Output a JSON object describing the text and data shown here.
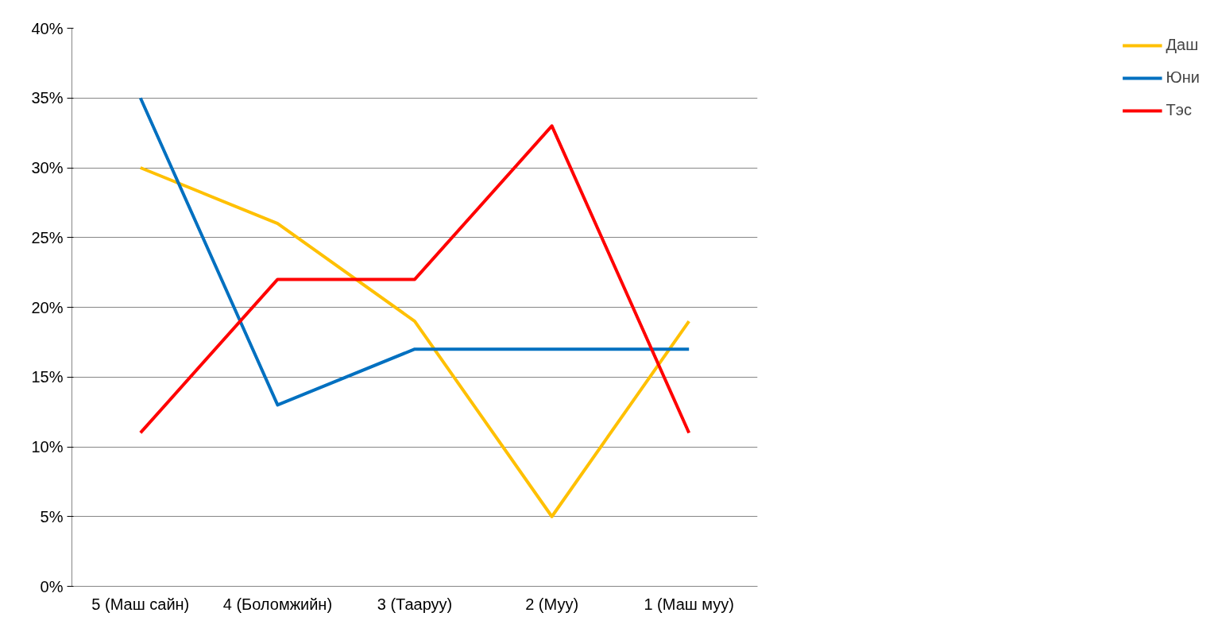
{
  "chart_data": {
    "type": "line",
    "categories": [
      "5 (Маш сайн)",
      "4 (Боломжийн)",
      "3 (Тааруу)",
      "2 (Муу)",
      "1 (Маш муу)"
    ],
    "series": [
      {
        "name": "Даш",
        "color": "#ffc000",
        "values": [
          30,
          26,
          19,
          5,
          19
        ]
      },
      {
        "name": "Юни",
        "color": "#0070c0",
        "values": [
          35,
          13,
          17,
          17,
          17
        ]
      },
      {
        "name": "Тэс",
        "color": "#ff0000",
        "values": [
          11,
          22,
          22,
          33,
          11
        ]
      }
    ],
    "ylim": [
      0,
      40
    ],
    "yticks": [
      {
        "value": 0,
        "label": "0%"
      },
      {
        "value": 5,
        "label": "5%"
      },
      {
        "value": 10,
        "label": "10%"
      },
      {
        "value": 15,
        "label": "15%"
      },
      {
        "value": 20,
        "label": "20%"
      },
      {
        "value": 25,
        "label": "25%"
      },
      {
        "value": 30,
        "label": "30%"
      },
      {
        "value": 35,
        "label": "35%"
      },
      {
        "value": 40,
        "label": "40%"
      }
    ],
    "grid": "y",
    "legend": "right"
  }
}
